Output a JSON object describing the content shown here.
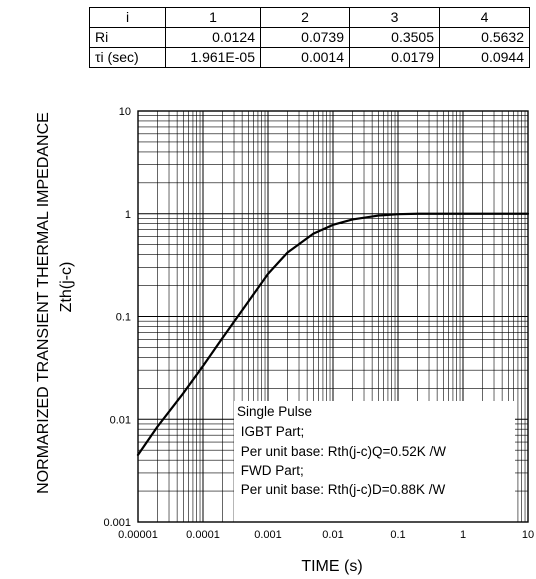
{
  "table": {
    "header": [
      "i",
      "1",
      "2",
      "3",
      "4"
    ],
    "rows": [
      {
        "label": "Ri",
        "values": [
          "0.0124",
          "0.0739",
          "0.3505",
          "0.5632"
        ]
      },
      {
        "label": "τi (sec)",
        "values": [
          "1.961E-05",
          "0.0014",
          "0.0179",
          "0.0944"
        ]
      }
    ]
  },
  "chart_data": {
    "type": "line",
    "title": "",
    "xlabel": "TIME (s)",
    "ylabel": "NORMARIZED TRANSIENT THERMAL IMPEDANCE",
    "ylabel2": "Zth(j-c)",
    "xscale": "log",
    "yscale": "log",
    "xlim": [
      1e-05,
      10
    ],
    "ylim": [
      0.001,
      10
    ],
    "grid": true,
    "xticks": [
      "0.00001",
      "0.0001",
      "0.001",
      "0.01",
      "0.1",
      "1",
      "10"
    ],
    "yticks": [
      "0.001",
      "0.01",
      "0.1",
      "1",
      "10"
    ],
    "series": [
      {
        "x": [
          1e-05,
          2e-05,
          5e-05,
          0.0001,
          0.0002,
          0.0005,
          0.001,
          0.002,
          0.005,
          0.01,
          0.02,
          0.05,
          0.1,
          0.2,
          0.3,
          0.5,
          1,
          2,
          5,
          10
        ],
        "y": [
          0.0045,
          0.0085,
          0.018,
          0.033,
          0.062,
          0.14,
          0.26,
          0.42,
          0.64,
          0.78,
          0.88,
          0.96,
          0.99,
          1.0,
          1.0,
          1.0,
          1.0,
          1.0,
          1.0,
          1.0
        ]
      }
    ],
    "annotation": {
      "lines": [
        "Single Pulse",
        " IGBT Part;",
        " Per unit base: Rth(j-c)Q=0.52K /W",
        " FWD Part;",
        " Per unit base: Rth(j-c)D=0.88K /W"
      ]
    }
  }
}
